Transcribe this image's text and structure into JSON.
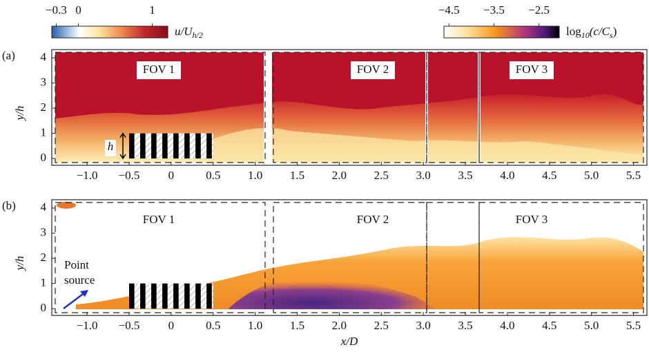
{
  "chart_data": [
    {
      "type": "field",
      "panel_label": "(a)",
      "ylabel": "y/h",
      "xlim": [
        -1.42,
        5.66
      ],
      "ylim": [
        -0.27,
        4.33
      ],
      "xticks": [
        {
          "value": -1,
          "label": "−1.0"
        },
        {
          "value": -0.5,
          "label": "−0.5"
        },
        0,
        0.5,
        {
          "value": 1,
          "label": "1.0"
        },
        1.5,
        {
          "value": 2,
          "label": "2.0"
        },
        2.5,
        {
          "value": 3,
          "label": "3.0"
        },
        3.5,
        {
          "value": 4,
          "label": "4.0"
        },
        4.5,
        {
          "value": 5,
          "label": "5.0"
        },
        5.5
      ],
      "yticks": [
        0,
        1,
        2,
        3,
        4
      ],
      "fov_labels": [
        "FOV 1",
        "FOV 2",
        "FOV 3"
      ],
      "height_label": "h",
      "colorbar": {
        "label": [
          {
            "text": "u/U"
          },
          {
            "text": "h/2",
            "sub": true
          }
        ],
        "lim": [
          -0.36,
          1.21
        ],
        "ticks": [
          {
            "value": -0.3,
            "label": "−0.3"
          },
          0,
          1
        ]
      }
    },
    {
      "type": "field",
      "panel_label": "(b)",
      "ylabel": "y/h",
      "xlabel": "x/D",
      "xlim": [
        -1.42,
        5.66
      ],
      "ylim": [
        -0.27,
        4.33
      ],
      "xticks": [
        {
          "value": -1,
          "label": "−1.0"
        },
        {
          "value": -0.5,
          "label": "−0.5"
        },
        0,
        0.5,
        {
          "value": 1,
          "label": "1.0"
        },
        1.5,
        {
          "value": 2,
          "label": "2.0"
        },
        2.5,
        {
          "value": 3,
          "label": "3.0"
        },
        3.5,
        {
          "value": 4,
          "label": "4.0"
        },
        4.5,
        {
          "value": 5,
          "label": "5.0"
        },
        5.5
      ],
      "yticks": [
        0,
        1,
        2,
        3,
        4
      ],
      "fov_labels": [
        "FOV 1",
        "FOV 2",
        "FOV 3"
      ],
      "source_label": [
        "Point",
        "source"
      ],
      "colorbar": {
        "label": [
          {
            "text": "log"
          },
          {
            "text": "10",
            "sub": true
          },
          {
            "text": "(c/C"
          },
          {
            "text": "s",
            "sub": true
          },
          {
            "text": ")"
          }
        ],
        "lim": [
          -4.61,
          -2.05
        ],
        "ticks": [
          {
            "value": -4.5,
            "label": "−4.5"
          },
          {
            "value": -3.5,
            "label": "−3.5"
          },
          {
            "value": -2.5,
            "label": "−2.5"
          }
        ]
      }
    }
  ]
}
